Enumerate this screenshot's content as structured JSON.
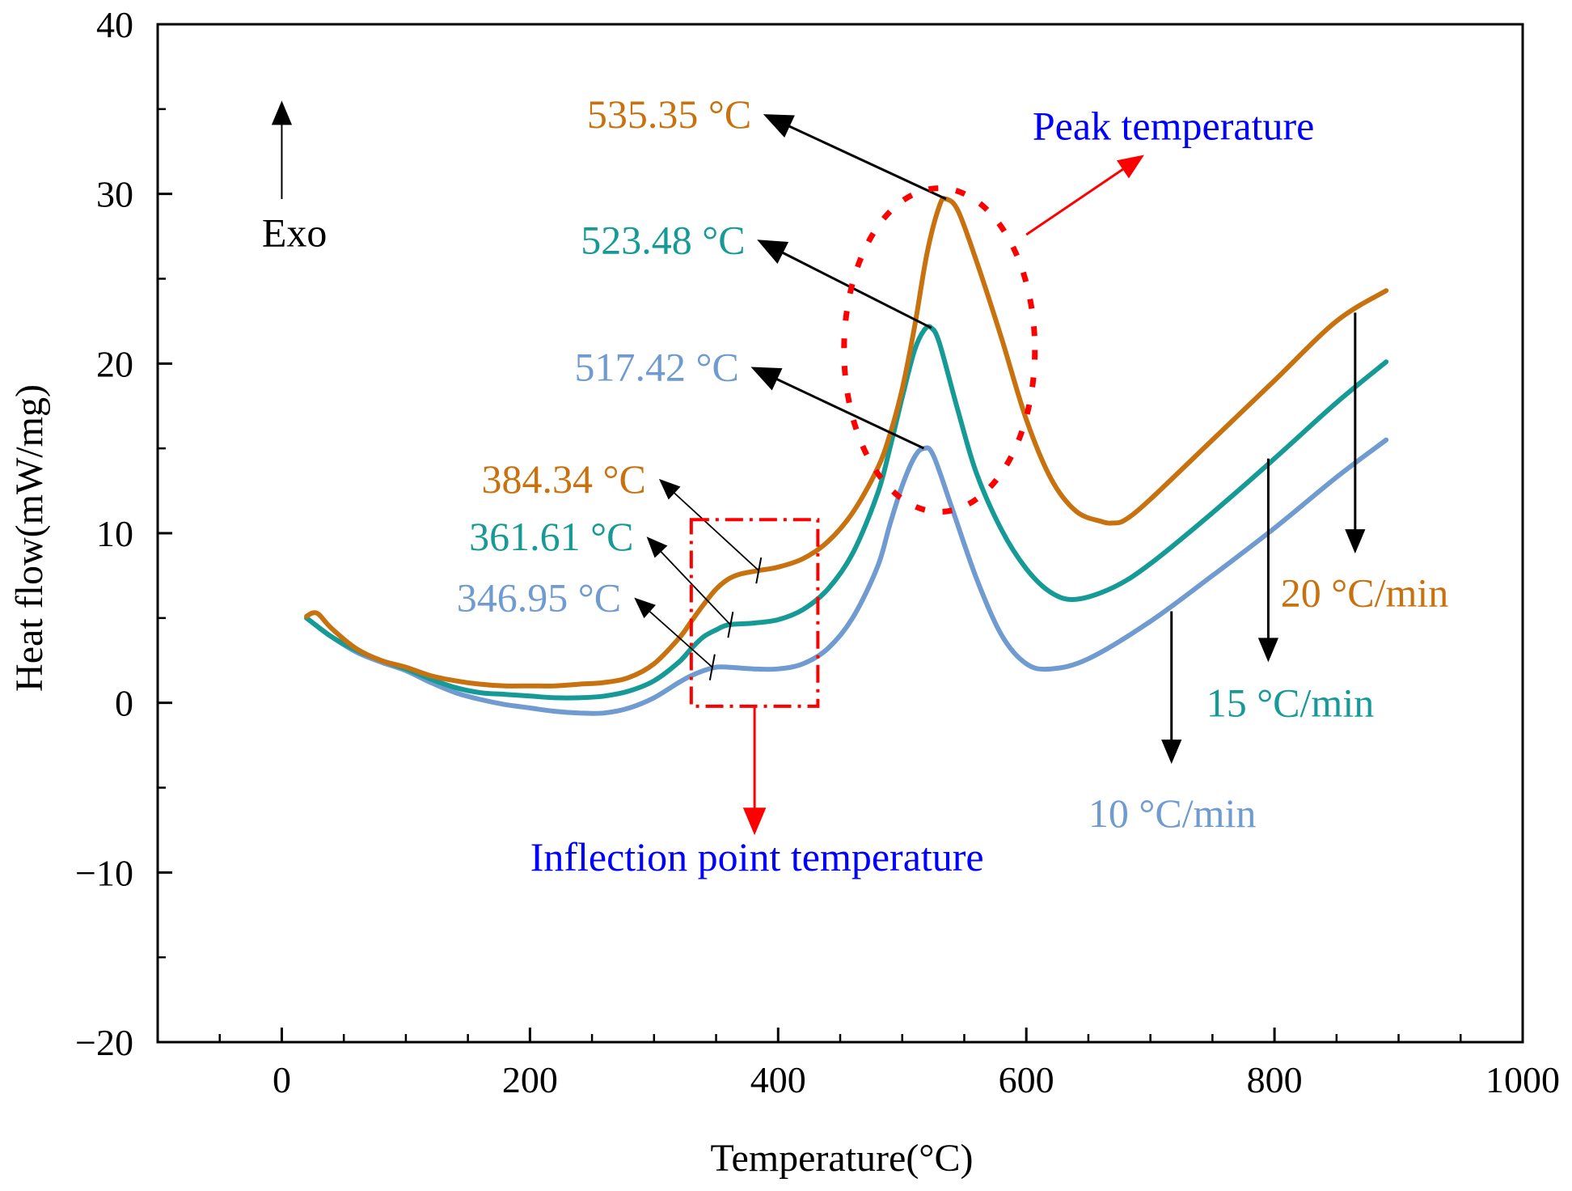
{
  "chart_data": {
    "type": "line",
    "title": "",
    "xlabel": "Temperature(°C)",
    "ylabel": "Heat flow(mW/mg)",
    "xlim": [
      -100,
      1000
    ],
    "ylim": [
      -20,
      40
    ],
    "xticks": [
      0,
      200,
      400,
      600,
      800,
      1000
    ],
    "xtick_labels": [
      "0",
      "200",
      "400",
      "600",
      "800",
      "1000"
    ],
    "xminor": [
      -50,
      50,
      100,
      150,
      250,
      300,
      350,
      450,
      500,
      550,
      650,
      700,
      750,
      850,
      900,
      950
    ],
    "yticks": [
      -20,
      -10,
      0,
      10,
      20,
      30,
      40
    ],
    "ytick_labels": [
      "−20",
      "−10",
      "0",
      "10",
      "20",
      "30",
      "40"
    ],
    "yminor": [
      -15,
      -5,
      5,
      15,
      25,
      35
    ],
    "series": [
      {
        "name": "10 °C/min",
        "color": "#6f9bd1",
        "x": [
          20,
          40,
          60,
          80,
          100,
          120,
          140,
          160,
          180,
          200,
          220,
          240,
          260,
          280,
          300,
          320,
          330,
          340,
          350,
          360,
          380,
          400,
          420,
          440,
          460,
          480,
          490,
          500,
          510,
          517.42,
          525,
          540,
          560,
          580,
          600,
          620,
          650,
          700,
          750,
          800,
          850,
          890
        ],
        "y": [
          5,
          3.9,
          3,
          2.4,
          1.9,
          1.2,
          0.6,
          0.2,
          -0.1,
          -0.3,
          -0.5,
          -0.6,
          -0.6,
          -0.3,
          0.3,
          1.2,
          1.6,
          1.9,
          2.1,
          2.1,
          2,
          2,
          2.3,
          3.2,
          5,
          8,
          10.5,
          12.8,
          14.5,
          15,
          14.6,
          11.5,
          7.3,
          4,
          2.3,
          2,
          2.6,
          4.8,
          7.5,
          10.3,
          13.3,
          15.5
        ]
      },
      {
        "name": "15 °C/min",
        "color": "#159a96",
        "x": [
          20,
          40,
          60,
          80,
          100,
          120,
          140,
          160,
          180,
          200,
          220,
          240,
          260,
          280,
          300,
          320,
          330,
          340,
          350,
          360,
          380,
          400,
          420,
          440,
          460,
          480,
          490,
          500,
          510,
          518,
          523.48,
          530,
          545,
          560,
          580,
          600,
          620,
          640,
          670,
          700,
          750,
          800,
          850,
          890
        ],
        "y": [
          5,
          3.9,
          3.1,
          2.5,
          2,
          1.4,
          0.9,
          0.6,
          0.5,
          0.4,
          0.3,
          0.3,
          0.4,
          0.7,
          1.3,
          2.4,
          3.2,
          3.9,
          4.3,
          4.6,
          4.7,
          4.9,
          5.5,
          6.7,
          8.8,
          12.3,
          15,
          18,
          20.8,
          22,
          22.1,
          21.2,
          17.2,
          13.5,
          10.2,
          7.9,
          6.5,
          6.1,
          6.8,
          8.2,
          11.2,
          14.4,
          17.7,
          20.1
        ]
      },
      {
        "name": "20 °C/min",
        "color": "#c8720f",
        "x": [
          20,
          25,
          30,
          40,
          60,
          80,
          100,
          120,
          140,
          160,
          180,
          200,
          220,
          240,
          260,
          280,
          300,
          320,
          330,
          340,
          350,
          360,
          370,
          384.34,
          400,
          420,
          440,
          460,
          480,
          490,
          500,
          510,
          520,
          530,
          535.35,
          545,
          560,
          580,
          600,
          620,
          640,
          660,
          670,
          680,
          700,
          750,
          800,
          850,
          890
        ],
        "y": [
          5.1,
          5.3,
          5.2,
          4.4,
          3.2,
          2.5,
          2.1,
          1.6,
          1.3,
          1.1,
          1,
          1,
          1,
          1.1,
          1.2,
          1.5,
          2.3,
          3.8,
          4.8,
          5.8,
          6.7,
          7.3,
          7.6,
          7.8,
          8,
          8.5,
          9.5,
          11.2,
          13.8,
          15.8,
          18.5,
          22.2,
          26.5,
          29.3,
          29.7,
          29,
          26,
          21.5,
          16.7,
          13.2,
          11.3,
          10.7,
          10.6,
          10.8,
          12,
          15.5,
          19,
          22.5,
          24.3
        ]
      }
    ],
    "annotations": {
      "exo": "Exo",
      "peak_label": "Peak temperature",
      "inflection_label": "Inflection point temperature",
      "peaks": [
        {
          "series": 2,
          "text": "535.35 °C",
          "x": 535.35,
          "y": 29.7,
          "tx": 385,
          "ty": 34.7,
          "color": "#c8720f"
        },
        {
          "series": 1,
          "text": "523.48 °C",
          "x": 523.48,
          "y": 22.1,
          "tx": 380,
          "ty": 27.3,
          "color": "#159a96"
        },
        {
          "series": 0,
          "text": "517.42 °C",
          "x": 517.42,
          "y": 15,
          "tx": 375,
          "ty": 19.8,
          "color": "#6f9bd1"
        }
      ],
      "inflections": [
        {
          "series": 2,
          "text": "384.34 °C",
          "x": 384.34,
          "y": 7.8,
          "tx": 300,
          "ty": 13.2,
          "color": "#c8720f"
        },
        {
          "series": 1,
          "text": "361.61 °C",
          "x": 361.61,
          "y": 4.6,
          "tx": 290,
          "ty": 9.8,
          "color": "#159a96"
        },
        {
          "series": 0,
          "text": "346.95 °C",
          "x": 346.95,
          "y": 2.1,
          "tx": 280,
          "ty": 6.2,
          "color": "#6f9bd1"
        }
      ],
      "rates": [
        {
          "text": "20 °C/min",
          "color": "#c8720f",
          "x1": 865,
          "y1": 23,
          "x2": 865,
          "y2": 8.8,
          "lx": 805,
          "ly": 6.5
        },
        {
          "text": "15 °C/min",
          "color": "#159a96",
          "x1": 795,
          "y1": 14.4,
          "x2": 795,
          "y2": 2.4,
          "lx": 745,
          "ly": 0
        },
        {
          "text": "10 °C/min",
          "color": "#6f9bd1",
          "x1": 717,
          "y1": 5.4,
          "x2": 717,
          "y2": -3.6,
          "lx": 650,
          "ly": -6.5
        }
      ]
    }
  }
}
